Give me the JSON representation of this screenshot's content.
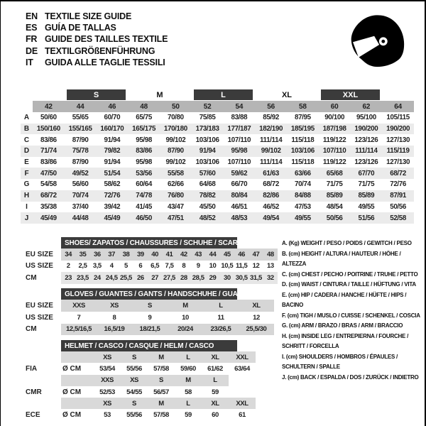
{
  "header": {
    "languages": [
      {
        "code": "EN",
        "text": "TEXTILE SIZE GUIDE"
      },
      {
        "code": "ES",
        "text": "GUÍA DE TALLAS"
      },
      {
        "code": "FR",
        "text": "GUIDE DES TAILLES TEXTILE"
      },
      {
        "code": "DE",
        "text": "TEXTILGRÖßENFÜHRUNG"
      },
      {
        "code": "IT",
        "text": "GUIDA ALLE TAGLIE TESSILI"
      }
    ]
  },
  "colors": {
    "dark_bar": "#3b3b3b",
    "size_band": "#b5b5b5",
    "row_band": "#ebebeb"
  },
  "main_table": {
    "size_groups": [
      {
        "label": "S",
        "dark": true
      },
      {
        "label": "M",
        "dark": false
      },
      {
        "label": "L",
        "dark": true
      },
      {
        "label": "XL",
        "dark": false
      },
      {
        "label": "XXL",
        "dark": true
      }
    ],
    "sizes": [
      "42",
      "44",
      "46",
      "48",
      "50",
      "52",
      "54",
      "56",
      "58",
      "60",
      "62",
      "64"
    ],
    "rows": [
      {
        "label": "A",
        "values": [
          "50/60",
          "55/65",
          "60/70",
          "65/75",
          "70/80",
          "75/85",
          "83/88",
          "85/92",
          "87/95",
          "90/100",
          "95/100",
          "105/115"
        ]
      },
      {
        "label": "B",
        "values": [
          "150/160",
          "155/165",
          "160/170",
          "165/175",
          "170/180",
          "173/183",
          "177/187",
          "182/190",
          "185/195",
          "187/198",
          "190/200",
          "190/200"
        ]
      },
      {
        "label": "C",
        "values": [
          "83/86",
          "87/90",
          "91/94",
          "95/98",
          "99/102",
          "103/106",
          "107/110",
          "111/114",
          "115/118",
          "119/122",
          "123/126",
          "127/130"
        ]
      },
      {
        "label": "D",
        "values": [
          "71/74",
          "75/78",
          "79/82",
          "83/86",
          "87/90",
          "91/94",
          "95/98",
          "99/102",
          "103/106",
          "107/110",
          "111/114",
          "115/119"
        ]
      },
      {
        "label": "E",
        "values": [
          "83/86",
          "87/90",
          "91/94",
          "95/98",
          "99/102",
          "103/106",
          "107/110",
          "111/114",
          "115/118",
          "119/122",
          "123/126",
          "127/130"
        ]
      },
      {
        "label": "F",
        "values": [
          "47/50",
          "49/52",
          "51/54",
          "53/56",
          "55/58",
          "57/60",
          "59/62",
          "61/63",
          "63/66",
          "65/68",
          "67/70",
          "68/72"
        ]
      },
      {
        "label": "G",
        "values": [
          "54/58",
          "56/60",
          "58/62",
          "60/64",
          "62/66",
          "64/68",
          "66/70",
          "68/72",
          "70/74",
          "71/75",
          "71/75",
          "72/76"
        ]
      },
      {
        "label": "H",
        "values": [
          "68/72",
          "70/74",
          "72/76",
          "74/78",
          "76/80",
          "78/82",
          "80/84",
          "82/86",
          "84/88",
          "85/89",
          "85/89",
          "87/91"
        ]
      },
      {
        "label": "I",
        "values": [
          "35/38",
          "37/40",
          "39/42",
          "41/45",
          "43/47",
          "45/50",
          "46/51",
          "46/52",
          "47/53",
          "48/54",
          "49/55",
          "50/56"
        ]
      },
      {
        "label": "J",
        "values": [
          "45/49",
          "44/48",
          "45/49",
          "46/50",
          "47/51",
          "48/52",
          "48/53",
          "49/54",
          "49/55",
          "50/56",
          "51/56",
          "52/58"
        ]
      }
    ]
  },
  "shoes": {
    "title": "SHOES/ ZAPATOS / CHAUSSURES / SCHUHE / SCARPE",
    "rows": [
      {
        "label": "EU SIZE",
        "values": [
          "34",
          "35",
          "36",
          "37",
          "38",
          "39",
          "40",
          "41",
          "42",
          "43",
          "44",
          "45",
          "46",
          "47",
          "48"
        ]
      },
      {
        "label": "US SIZE",
        "values": [
          "2",
          "2,5",
          "3,5",
          "4",
          "5",
          "6",
          "6,5",
          "7,5",
          "8",
          "9",
          "10",
          "10,5",
          "11,5",
          "12",
          "13"
        ]
      },
      {
        "label": "CM",
        "values": [
          "23",
          "23,5",
          "24",
          "24,5",
          "25,5",
          "26",
          "27",
          "27,5",
          "28",
          "28,5",
          "29",
          "30",
          "30,5",
          "31,5",
          "32"
        ]
      }
    ]
  },
  "gloves": {
    "title": "GLOVES / GUANTES / GANTS / HANDSCHUHE / GUANTI",
    "rows": [
      {
        "label": "EU SIZE",
        "values": [
          "XXS",
          "XS",
          "S",
          "M",
          "L",
          "XL"
        ]
      },
      {
        "label": "US SIZE",
        "values": [
          "7",
          "8",
          "9",
          "10",
          "11",
          "12"
        ]
      },
      {
        "label": "CM",
        "values": [
          "12,5/16,5",
          "16,5/19",
          "18/21,5",
          "20/24",
          "23/26,5",
          "25,5/30"
        ]
      }
    ]
  },
  "helmet": {
    "title": "HELMET / CASCO / CASQUE / HELM / CASCO",
    "sections": [
      {
        "label": "FIA",
        "unit": "Ø CM",
        "sizes": [
          "XS",
          "S",
          "M",
          "L",
          "XL",
          "XXL"
        ],
        "values": [
          "53/54",
          "55/56",
          "57/58",
          "59/60",
          "61/62",
          "63/64"
        ]
      },
      {
        "label": "CMR",
        "unit": "Ø CM",
        "sizes": [
          "XXS",
          "XS",
          "S",
          "M",
          "L"
        ],
        "values": [
          "52/53",
          "54/55",
          "56/57",
          "58",
          "59"
        ]
      },
      {
        "label": "ECE",
        "unit": "Ø CM",
        "sizes": [
          "XS",
          "S",
          "M",
          "L",
          "XL",
          "XXL"
        ],
        "values": [
          "53",
          "55/56",
          "57/58",
          "59",
          "60",
          "61"
        ]
      }
    ]
  },
  "legend": {
    "items": [
      "A. (Kg) WEIGHT / PESO / POIDS / GEWITCH / PESO",
      "B. (cm) HEIGHT / ALTURA / HAUTEUR / HÖHE / ALTEZZA",
      "C. (cm) CHEST / PECHO / POITRINE / TRUHE / PETTO",
      "D. (cm) WAIST / CINTURA / TAILLE / HÜFTUNG / VITA",
      "E. (cm) HIP / CADERA / HANCHE / HÜFTE / HIPS / BACINO",
      "F. (cm) TIGH / MUSLO / CUISSE / SCHENKEL / COSCIA",
      "G. (cm) ARM / BRAZO / BRAS / ARM / BRACCIO",
      "H. (cm) INSIDE LEG / ENTREPIERNA / FOURCHE /\nSCHRITT / FORCELLA",
      "I. (cm) SHOULDERS / HOMBROS / ÉPAULES /\nSCHULTERN / SPALLE",
      "J. (cm) BACK / ESPALDA / DOS / ZURÜCK / INDIETRO"
    ]
  }
}
